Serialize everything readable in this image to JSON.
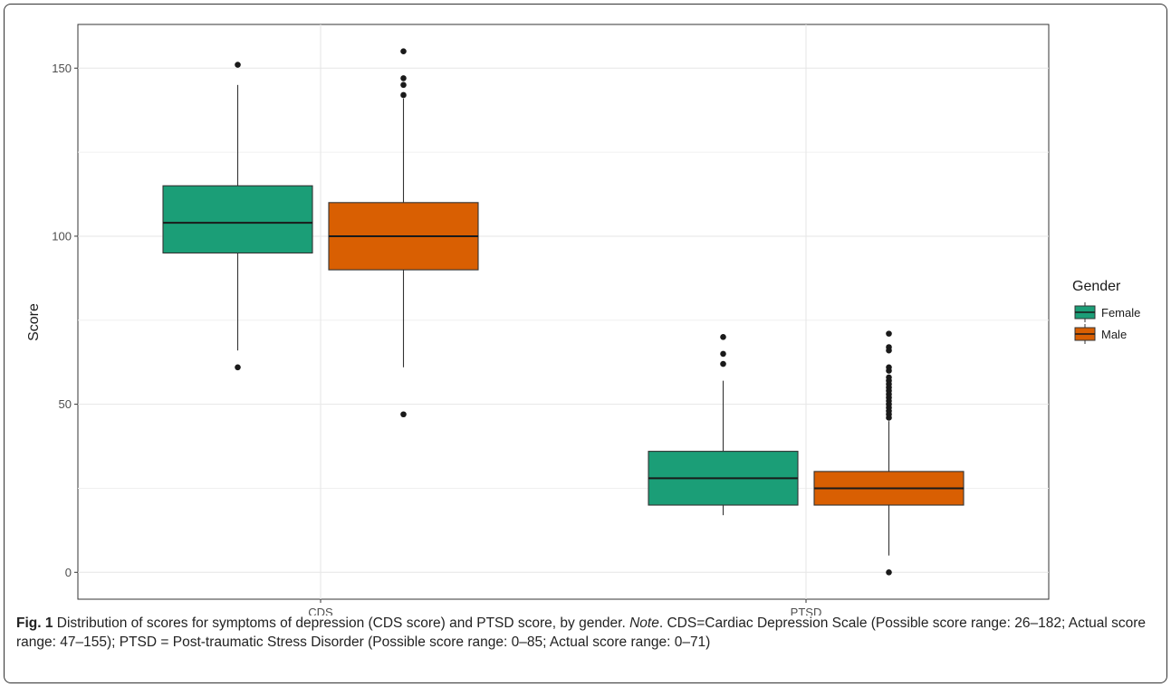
{
  "chart_data": {
    "type": "box",
    "categories": [
      "CDS",
      "PTSD"
    ],
    "ylabel": "Score",
    "xlabel": "",
    "ylim": [
      -8,
      163
    ],
    "yticks": [
      0,
      50,
      100,
      150
    ],
    "grid": true,
    "legend": {
      "title": "Gender",
      "position": "right",
      "entries": [
        "Female",
        "Male"
      ]
    },
    "series": [
      {
        "name": "Female",
        "color": "#1b9e77",
        "boxes": [
          {
            "category": "CDS",
            "q1": 95,
            "median": 104,
            "q3": 115,
            "whisker_low": 66,
            "whisker_high": 145,
            "outliers": [
              151,
              61
            ]
          },
          {
            "category": "PTSD",
            "q1": 20,
            "median": 28,
            "q3": 36,
            "whisker_low": 17,
            "whisker_high": 57,
            "outliers": [
              70,
              65,
              62
            ]
          }
        ]
      },
      {
        "name": "Male",
        "color": "#d95f02",
        "boxes": [
          {
            "category": "CDS",
            "q1": 90,
            "median": 100,
            "q3": 110,
            "whisker_low": 61,
            "whisker_high": 141,
            "outliers": [
              155,
              147,
              145,
              142,
              47
            ]
          },
          {
            "category": "PTSD",
            "q1": 20,
            "median": 25,
            "q3": 30,
            "whisker_low": 5,
            "whisker_high": 45,
            "outliers": [
              71,
              67,
              66,
              61,
              60,
              58,
              57,
              56,
              55,
              54,
              53,
              52,
              51,
              50,
              49,
              48,
              47,
              46,
              0
            ]
          }
        ]
      }
    ]
  },
  "caption": {
    "label": "Fig. 1",
    "text": " Distribution of scores for symptoms of depression (CDS score) and PTSD score, by gender. ",
    "note_label": "Note",
    "note_text": ". CDS=Cardiac Depression Scale (Possible score range: 26–182; Actual score range: 47–155); PTSD = Post-traumatic Stress Disorder (Possible score range: 0–85; Actual score range: 0–71)"
  }
}
